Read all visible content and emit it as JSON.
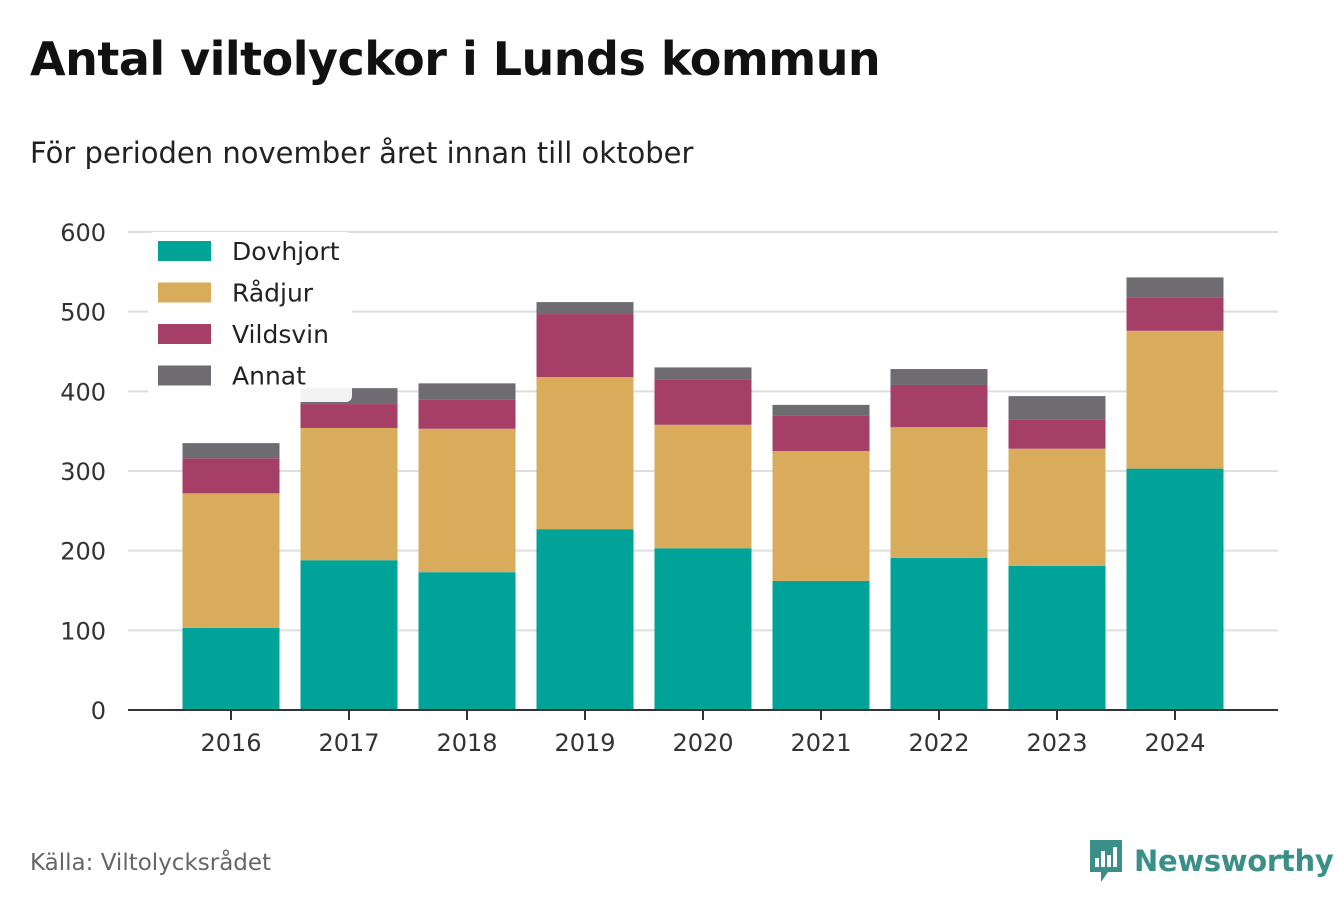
{
  "title": "Antal viltolyckor i Lunds kommun",
  "subtitle": "För perioden november året innan till oktober",
  "source": "Källa: Viltolycksrådet",
  "brand": "Newsworthy",
  "colors": {
    "brand": "#3a8f88",
    "Dovhjort": "#00a398",
    "Rådjur": "#d9ac5b",
    "Vildsvin": "#a63f66",
    "Annat": "#6e6b71"
  },
  "chart_data": {
    "type": "bar",
    "stacked": true,
    "categories": [
      "2016",
      "2017",
      "2018",
      "2019",
      "2020",
      "2021",
      "2022",
      "2023",
      "2024"
    ],
    "series": [
      {
        "name": "Dovhjort",
        "values": [
          103,
          188,
          173,
          227,
          203,
          162,
          191,
          181,
          303
        ]
      },
      {
        "name": "Rådjur",
        "values": [
          169,
          166,
          180,
          191,
          155,
          163,
          164,
          147,
          173
        ]
      },
      {
        "name": "Vildsvin",
        "values": [
          44,
          30,
          37,
          79,
          57,
          45,
          53,
          37,
          42
        ]
      },
      {
        "name": "Annat",
        "values": [
          19,
          20,
          20,
          15,
          15,
          13,
          20,
          29,
          25
        ]
      }
    ],
    "ylim": [
      0,
      600
    ],
    "yticks": [
      0,
      100,
      200,
      300,
      400,
      500,
      600
    ],
    "grid": true,
    "legend": "top-left"
  }
}
